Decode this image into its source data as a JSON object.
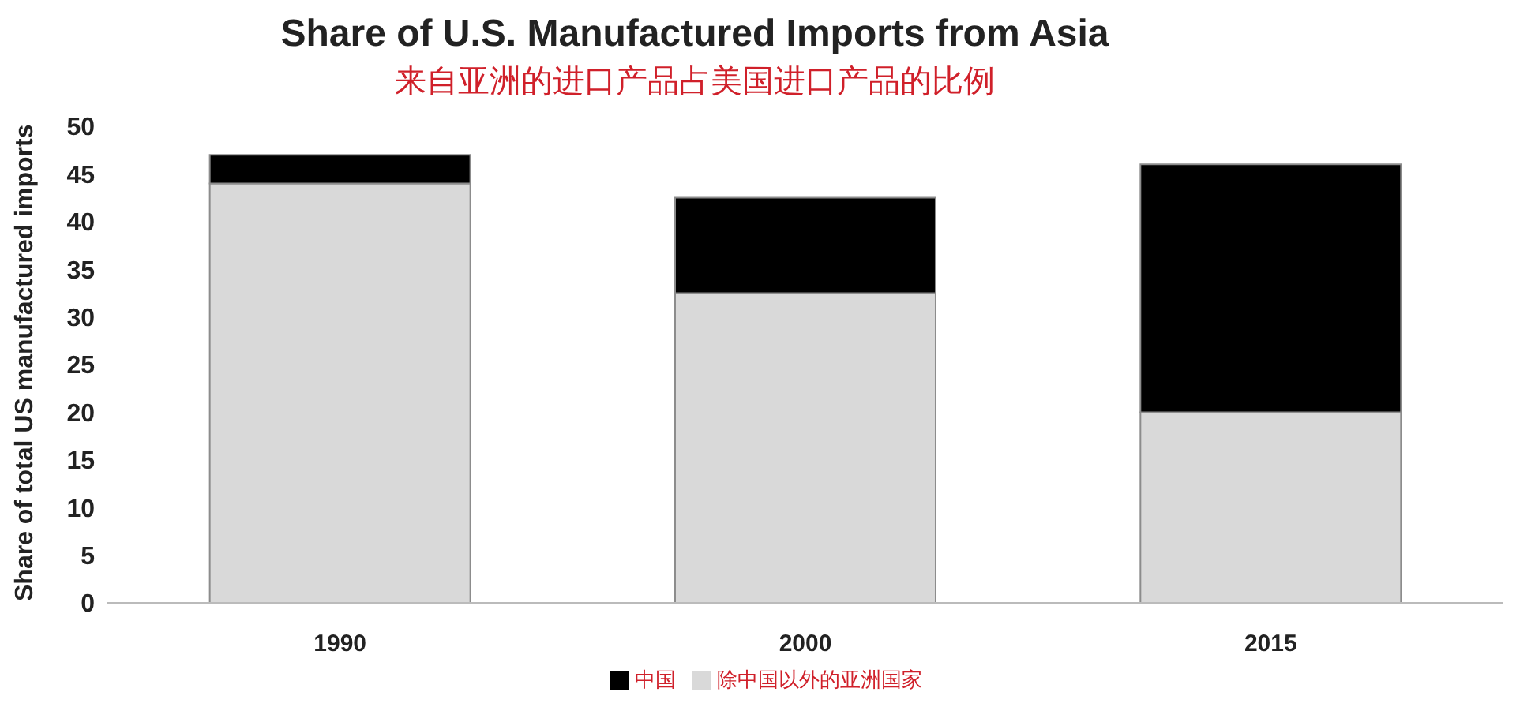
{
  "chart_data": {
    "type": "bar",
    "title": "Share of U.S. Manufactured Imports from Asia",
    "subtitle": "来自亚洲的进口产品占美国进口产品的比例",
    "ylabel": "Share of total US manufactured imports",
    "categories": [
      "1990",
      "2000",
      "2015"
    ],
    "stacked": true,
    "series": [
      {
        "name": "除中国以外的亚洲国家",
        "color": "#d9d9d9",
        "values": [
          44,
          32.5,
          20
        ]
      },
      {
        "name": "中国",
        "color": "#000000",
        "values": [
          3,
          10,
          26
        ]
      }
    ],
    "ylim": [
      0,
      50
    ],
    "yticks": [
      0,
      5,
      10,
      15,
      20,
      25,
      30,
      35,
      40,
      45,
      50
    ],
    "legend": "bottom",
    "grid": false
  }
}
